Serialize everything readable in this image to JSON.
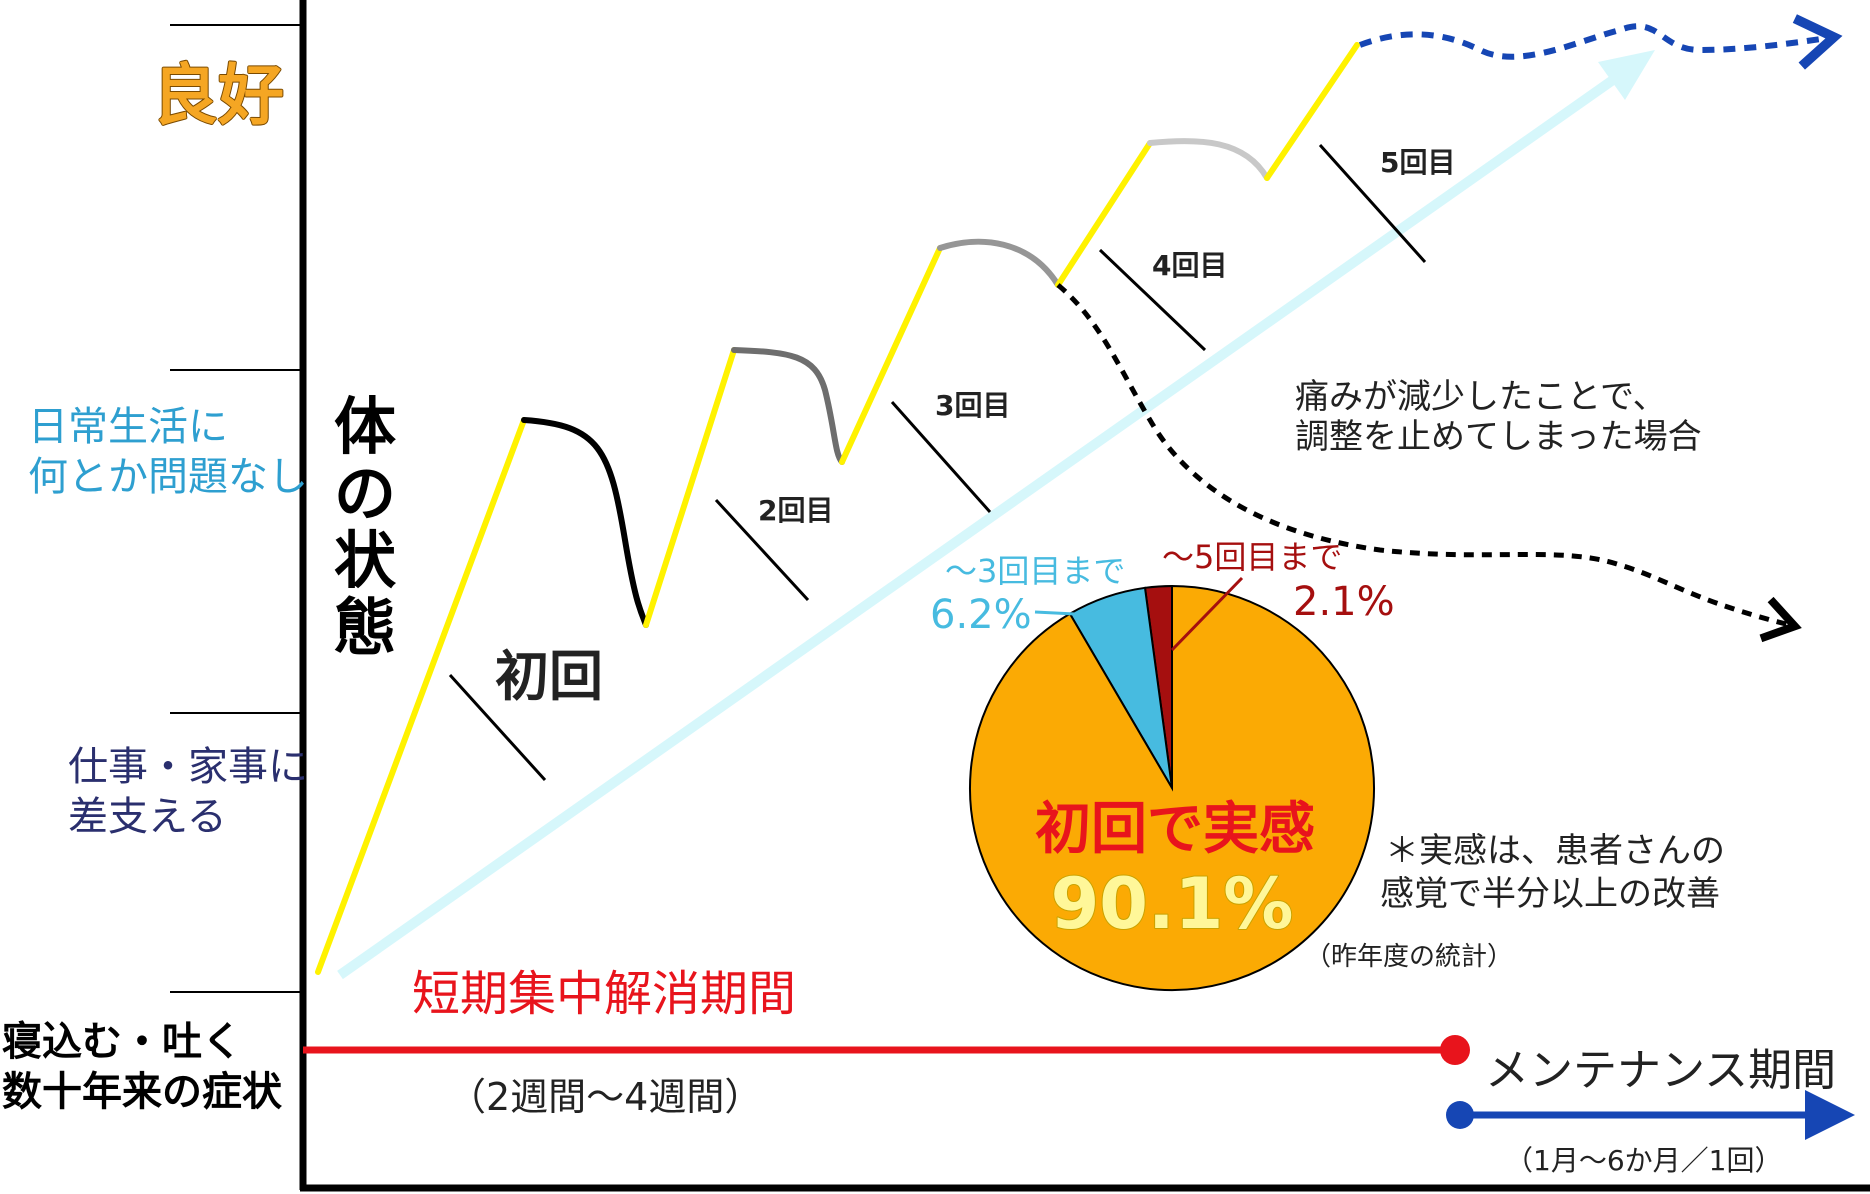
{
  "y_axis": {
    "title": "体の状態",
    "levels": [
      {
        "text": [
          "良好"
        ],
        "color": "#F5A623"
      },
      {
        "text": [
          "日常生活に",
          "何とか問題なし"
        ],
        "color": "#2E9FD0"
      },
      {
        "text": [
          "仕事・家事に",
          "差支える"
        ],
        "color": "#2A2F6E"
      },
      {
        "text": [
          "寝込む・吐く",
          "数十年来の症状"
        ],
        "color": "#000000"
      }
    ]
  },
  "sessions": [
    "初回",
    "2回目",
    "3回目",
    "4回目",
    "5回目"
  ],
  "stop_case": [
    "痛みが減少したことで、",
    "調整を止めてしまった場合"
  ],
  "pie": {
    "slices": [
      {
        "label": "初回で実感",
        "value": 90.1,
        "color": "#FBAA04",
        "value_text": "90.1%"
      },
      {
        "label": "〜3回目まで",
        "value": 6.2,
        "color": "#47BBE0",
        "value_text": "6.2%"
      },
      {
        "label": "〜5回目まで",
        "value": 2.1,
        "color": "#A50F0F",
        "value_text": "2.1%"
      }
    ],
    "note": [
      "＊実感は、患者さんの",
      "感覚で半分以上の改善"
    ],
    "source": "（昨年度の統計）"
  },
  "periods": {
    "intensive_label": "短期集中解消期間",
    "intensive_duration": "（2週間〜4週間）",
    "maintenance_label": "メンテナンス期間",
    "maintenance_duration": "（1月〜6か月／1回）"
  },
  "colors": {
    "rise": "#FFF200",
    "trend": "#D6F7FB",
    "intensive": "#E8141C",
    "maintenance": "#1646B4"
  }
}
